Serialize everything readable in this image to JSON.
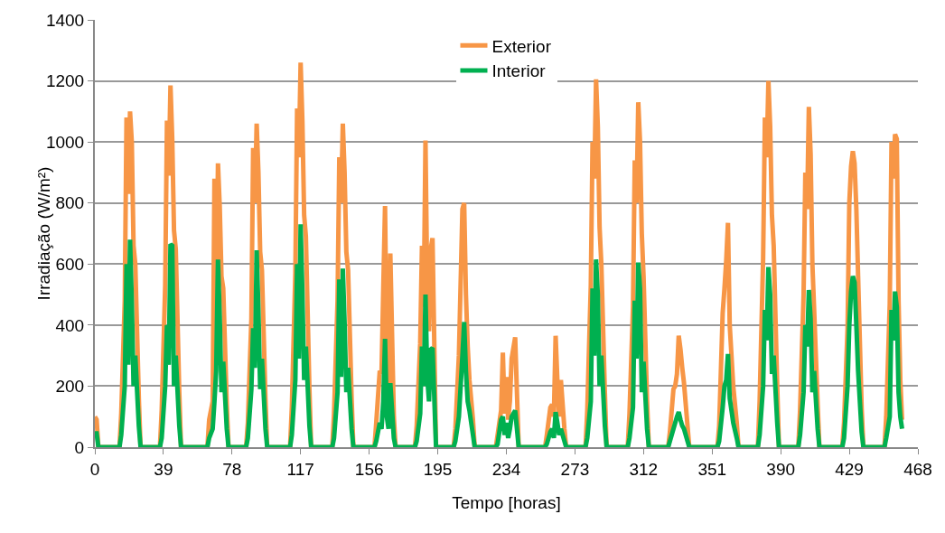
{
  "chart_data": {
    "type": "line",
    "xlabel": "Tempo [horas]",
    "ylabel": "Irradiação (W/m²)",
    "xlim": [
      0,
      468
    ],
    "xticks": [
      0,
      39,
      78,
      117,
      156,
      195,
      234,
      273,
      312,
      351,
      390,
      429,
      468
    ],
    "ylim": [
      0,
      1400
    ],
    "yticks": [
      0,
      200,
      400,
      600,
      800,
      1000,
      1200,
      1400
    ],
    "grid": "y",
    "legend": "top",
    "marker": "none",
    "line_style": "solid",
    "x": [
      0,
      1,
      2,
      14,
      15,
      17,
      18,
      19,
      20,
      21,
      22,
      23,
      25,
      26,
      37,
      38,
      40,
      41,
      42,
      43,
      44,
      45,
      46,
      48,
      49,
      64,
      65,
      67,
      68,
      69,
      70,
      71,
      72,
      73,
      75,
      76,
      86,
      87,
      89,
      90,
      91,
      92,
      93,
      94,
      95,
      97,
      98,
      111,
      112,
      114,
      115,
      116,
      117,
      118,
      119,
      120,
      122,
      123,
      135,
      136,
      138,
      139,
      140,
      141,
      142,
      143,
      144,
      146,
      147,
      159,
      160,
      162,
      163,
      164,
      165,
      166,
      167,
      168,
      170,
      171,
      182,
      183,
      185,
      186,
      187,
      188,
      189,
      190,
      191,
      192,
      194,
      204,
      205,
      207,
      208,
      209,
      210,
      211,
      212,
      213,
      215,
      216,
      228,
      229,
      231,
      232,
      233,
      234,
      235,
      236,
      237,
      239,
      241,
      256,
      257,
      259,
      260,
      261,
      262,
      263,
      264,
      265,
      267,
      268,
      279,
      280,
      282,
      283,
      284,
      285,
      286,
      287,
      288,
      290,
      291,
      303,
      304,
      306,
      307,
      308,
      309,
      310,
      311,
      312,
      314,
      315,
      326,
      327,
      329,
      330,
      331,
      332,
      333,
      334,
      335,
      337,
      338,
      354,
      355,
      357,
      358,
      359,
      360,
      361,
      362,
      363,
      365,
      366,
      377,
      378,
      380,
      381,
      382,
      383,
      384,
      385,
      386,
      388,
      389,
      400,
      401,
      403,
      404,
      405,
      406,
      407,
      408,
      409,
      411,
      412,
      425,
      426,
      428,
      429,
      430,
      431,
      432,
      433,
      434,
      436,
      437,
      449,
      450,
      452,
      453,
      454,
      455,
      456,
      457,
      458,
      459
    ],
    "series": [
      {
        "name": "Exterior",
        "color": "#f79646",
        "values": [
          100,
          90,
          0,
          0,
          110,
          480,
          1080,
          830,
          1100,
          1000,
          660,
          600,
          160,
          0,
          0,
          120,
          530,
          1070,
          890,
          1185,
          1010,
          710,
          650,
          180,
          0,
          0,
          90,
          150,
          880,
          420,
          930,
          790,
          560,
          520,
          140,
          0,
          0,
          80,
          420,
          980,
          800,
          1060,
          900,
          640,
          580,
          160,
          0,
          0,
          130,
          570,
          1110,
          950,
          1260,
          1070,
          760,
          690,
          190,
          0,
          0,
          110,
          480,
          950,
          800,
          1060,
          900,
          640,
          580,
          160,
          0,
          0,
          80,
          250,
          240,
          520,
          790,
          300,
          180,
          635,
          100,
          0,
          0,
          70,
          340,
          660,
          460,
          1005,
          520,
          380,
          650,
          685,
          0,
          0,
          60,
          300,
          540,
          780,
          800,
          500,
          330,
          220,
          90,
          0,
          0,
          40,
          120,
          310,
          110,
          230,
          90,
          150,
          290,
          360,
          0,
          0,
          40,
          130,
          140,
          100,
          365,
          220,
          100,
          220,
          60,
          0,
          0,
          120,
          530,
          1000,
          880,
          1205,
          1050,
          720,
          600,
          180,
          0,
          0,
          110,
          460,
          940,
          800,
          1130,
          1000,
          700,
          560,
          150,
          0,
          0,
          50,
          190,
          200,
          240,
          365,
          320,
          260,
          210,
          70,
          0,
          0,
          70,
          440,
          520,
          610,
          735,
          400,
          300,
          200,
          80,
          0,
          0,
          150,
          620,
          1080,
          950,
          1200,
          1050,
          760,
          660,
          200,
          0,
          0,
          120,
          500,
          900,
          780,
          1115,
          960,
          600,
          450,
          140,
          0,
          0,
          80,
          390,
          800,
          920,
          970,
          930,
          780,
          560,
          130,
          0,
          0,
          100,
          470,
          1000,
          880,
          1025,
          1010,
          480,
          220,
          90
        ]
      },
      {
        "name": "Interior",
        "color": "#00b050",
        "values": [
          45,
          45,
          0,
          0,
          40,
          200,
          600,
          270,
          680,
          480,
          200,
          300,
          70,
          0,
          0,
          30,
          200,
          400,
          270,
          665,
          660,
          200,
          300,
          70,
          0,
          0,
          30,
          60,
          150,
          250,
          615,
          430,
          180,
          280,
          60,
          0,
          0,
          30,
          190,
          390,
          260,
          645,
          450,
          190,
          290,
          60,
          0,
          0,
          40,
          220,
          600,
          290,
          730,
          510,
          220,
          330,
          70,
          0,
          0,
          30,
          180,
          550,
          230,
          585,
          410,
          180,
          260,
          60,
          0,
          0,
          20,
          80,
          60,
          150,
          355,
          100,
          60,
          210,
          30,
          0,
          0,
          20,
          110,
          330,
          200,
          500,
          230,
          150,
          320,
          325,
          0,
          0,
          20,
          100,
          200,
          300,
          410,
          250,
          150,
          120,
          40,
          0,
          0,
          10,
          90,
          100,
          40,
          80,
          30,
          60,
          100,
          120,
          0,
          0,
          10,
          50,
          60,
          30,
          115,
          80,
          40,
          60,
          20,
          0,
          0,
          30,
          150,
          520,
          300,
          615,
          500,
          200,
          300,
          70,
          0,
          0,
          30,
          130,
          480,
          290,
          605,
          520,
          180,
          280,
          60,
          0,
          0,
          20,
          60,
          80,
          100,
          115,
          90,
          70,
          60,
          20,
          0,
          0,
          20,
          130,
          200,
          220,
          305,
          160,
          120,
          80,
          30,
          0,
          0,
          40,
          200,
          450,
          350,
          590,
          500,
          240,
          300,
          80,
          0,
          0,
          40,
          180,
          400,
          330,
          515,
          420,
          180,
          250,
          60,
          0,
          0,
          30,
          200,
          400,
          510,
          560,
          540,
          400,
          250,
          50,
          0,
          0,
          30,
          100,
          450,
          350,
          510,
          460,
          180,
          100,
          60
        ]
      }
    ]
  }
}
